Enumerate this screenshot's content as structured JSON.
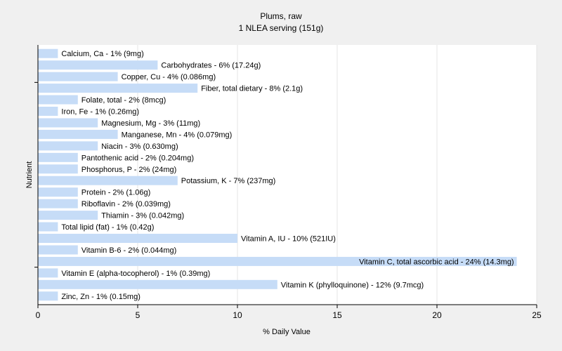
{
  "chart_data": {
    "type": "bar",
    "orientation": "horizontal",
    "title": "Plums, raw",
    "subtitle": "1 NLEA serving (151g)",
    "xlabel": "% Daily Value",
    "ylabel": "Nutrient",
    "xlim": [
      0,
      25
    ],
    "xticks": [
      0,
      5,
      10,
      15,
      20,
      25
    ],
    "grid": true,
    "bar_color": "#c6dcf7",
    "categories": [
      "Calcium, Ca",
      "Carbohydrates",
      "Copper, Cu",
      "Fiber, total dietary",
      "Folate, total",
      "Iron, Fe",
      "Magnesium, Mg",
      "Manganese, Mn",
      "Niacin",
      "Pantothenic acid",
      "Phosphorus, P",
      "Potassium, K",
      "Protein",
      "Riboflavin",
      "Thiamin",
      "Total lipid (fat)",
      "Vitamin A, IU",
      "Vitamin B-6",
      "Vitamin C, total ascorbic acid",
      "Vitamin E (alpha-tocopherol)",
      "Vitamin K (phylloquinone)",
      "Zinc, Zn"
    ],
    "values": [
      1,
      6,
      4,
      8,
      2,
      1,
      3,
      4,
      3,
      2,
      2,
      7,
      2,
      2,
      3,
      1,
      10,
      2,
      24,
      1,
      12,
      1
    ],
    "labels": [
      "Calcium, Ca - 1% (9mg)",
      "Carbohydrates - 6% (17.24g)",
      "Copper, Cu - 4% (0.086mg)",
      "Fiber, total dietary - 8% (2.1g)",
      "Folate, total - 2% (8mcg)",
      "Iron, Fe - 1% (0.26mg)",
      "Magnesium, Mg - 3% (11mg)",
      "Manganese, Mn - 4% (0.079mg)",
      "Niacin - 3% (0.630mg)",
      "Pantothenic acid - 2% (0.204mg)",
      "Phosphorus, P - 2% (24mg)",
      "Potassium, K - 7% (237mg)",
      "Protein - 2% (1.06g)",
      "Riboflavin - 2% (0.039mg)",
      "Thiamin - 3% (0.042mg)",
      "Total lipid (fat) - 1% (0.42g)",
      "Vitamin A, IU - 10% (521IU)",
      "Vitamin B-6 - 2% (0.044mg)",
      "Vitamin C, total ascorbic acid - 24% (14.3mg)",
      "Vitamin E (alpha-tocopherol) - 1% (0.39mg)",
      "Vitamin K (phylloquinone) - 12% (9.7mcg)",
      "Zinc, Zn - 1% (0.15mg)"
    ]
  }
}
